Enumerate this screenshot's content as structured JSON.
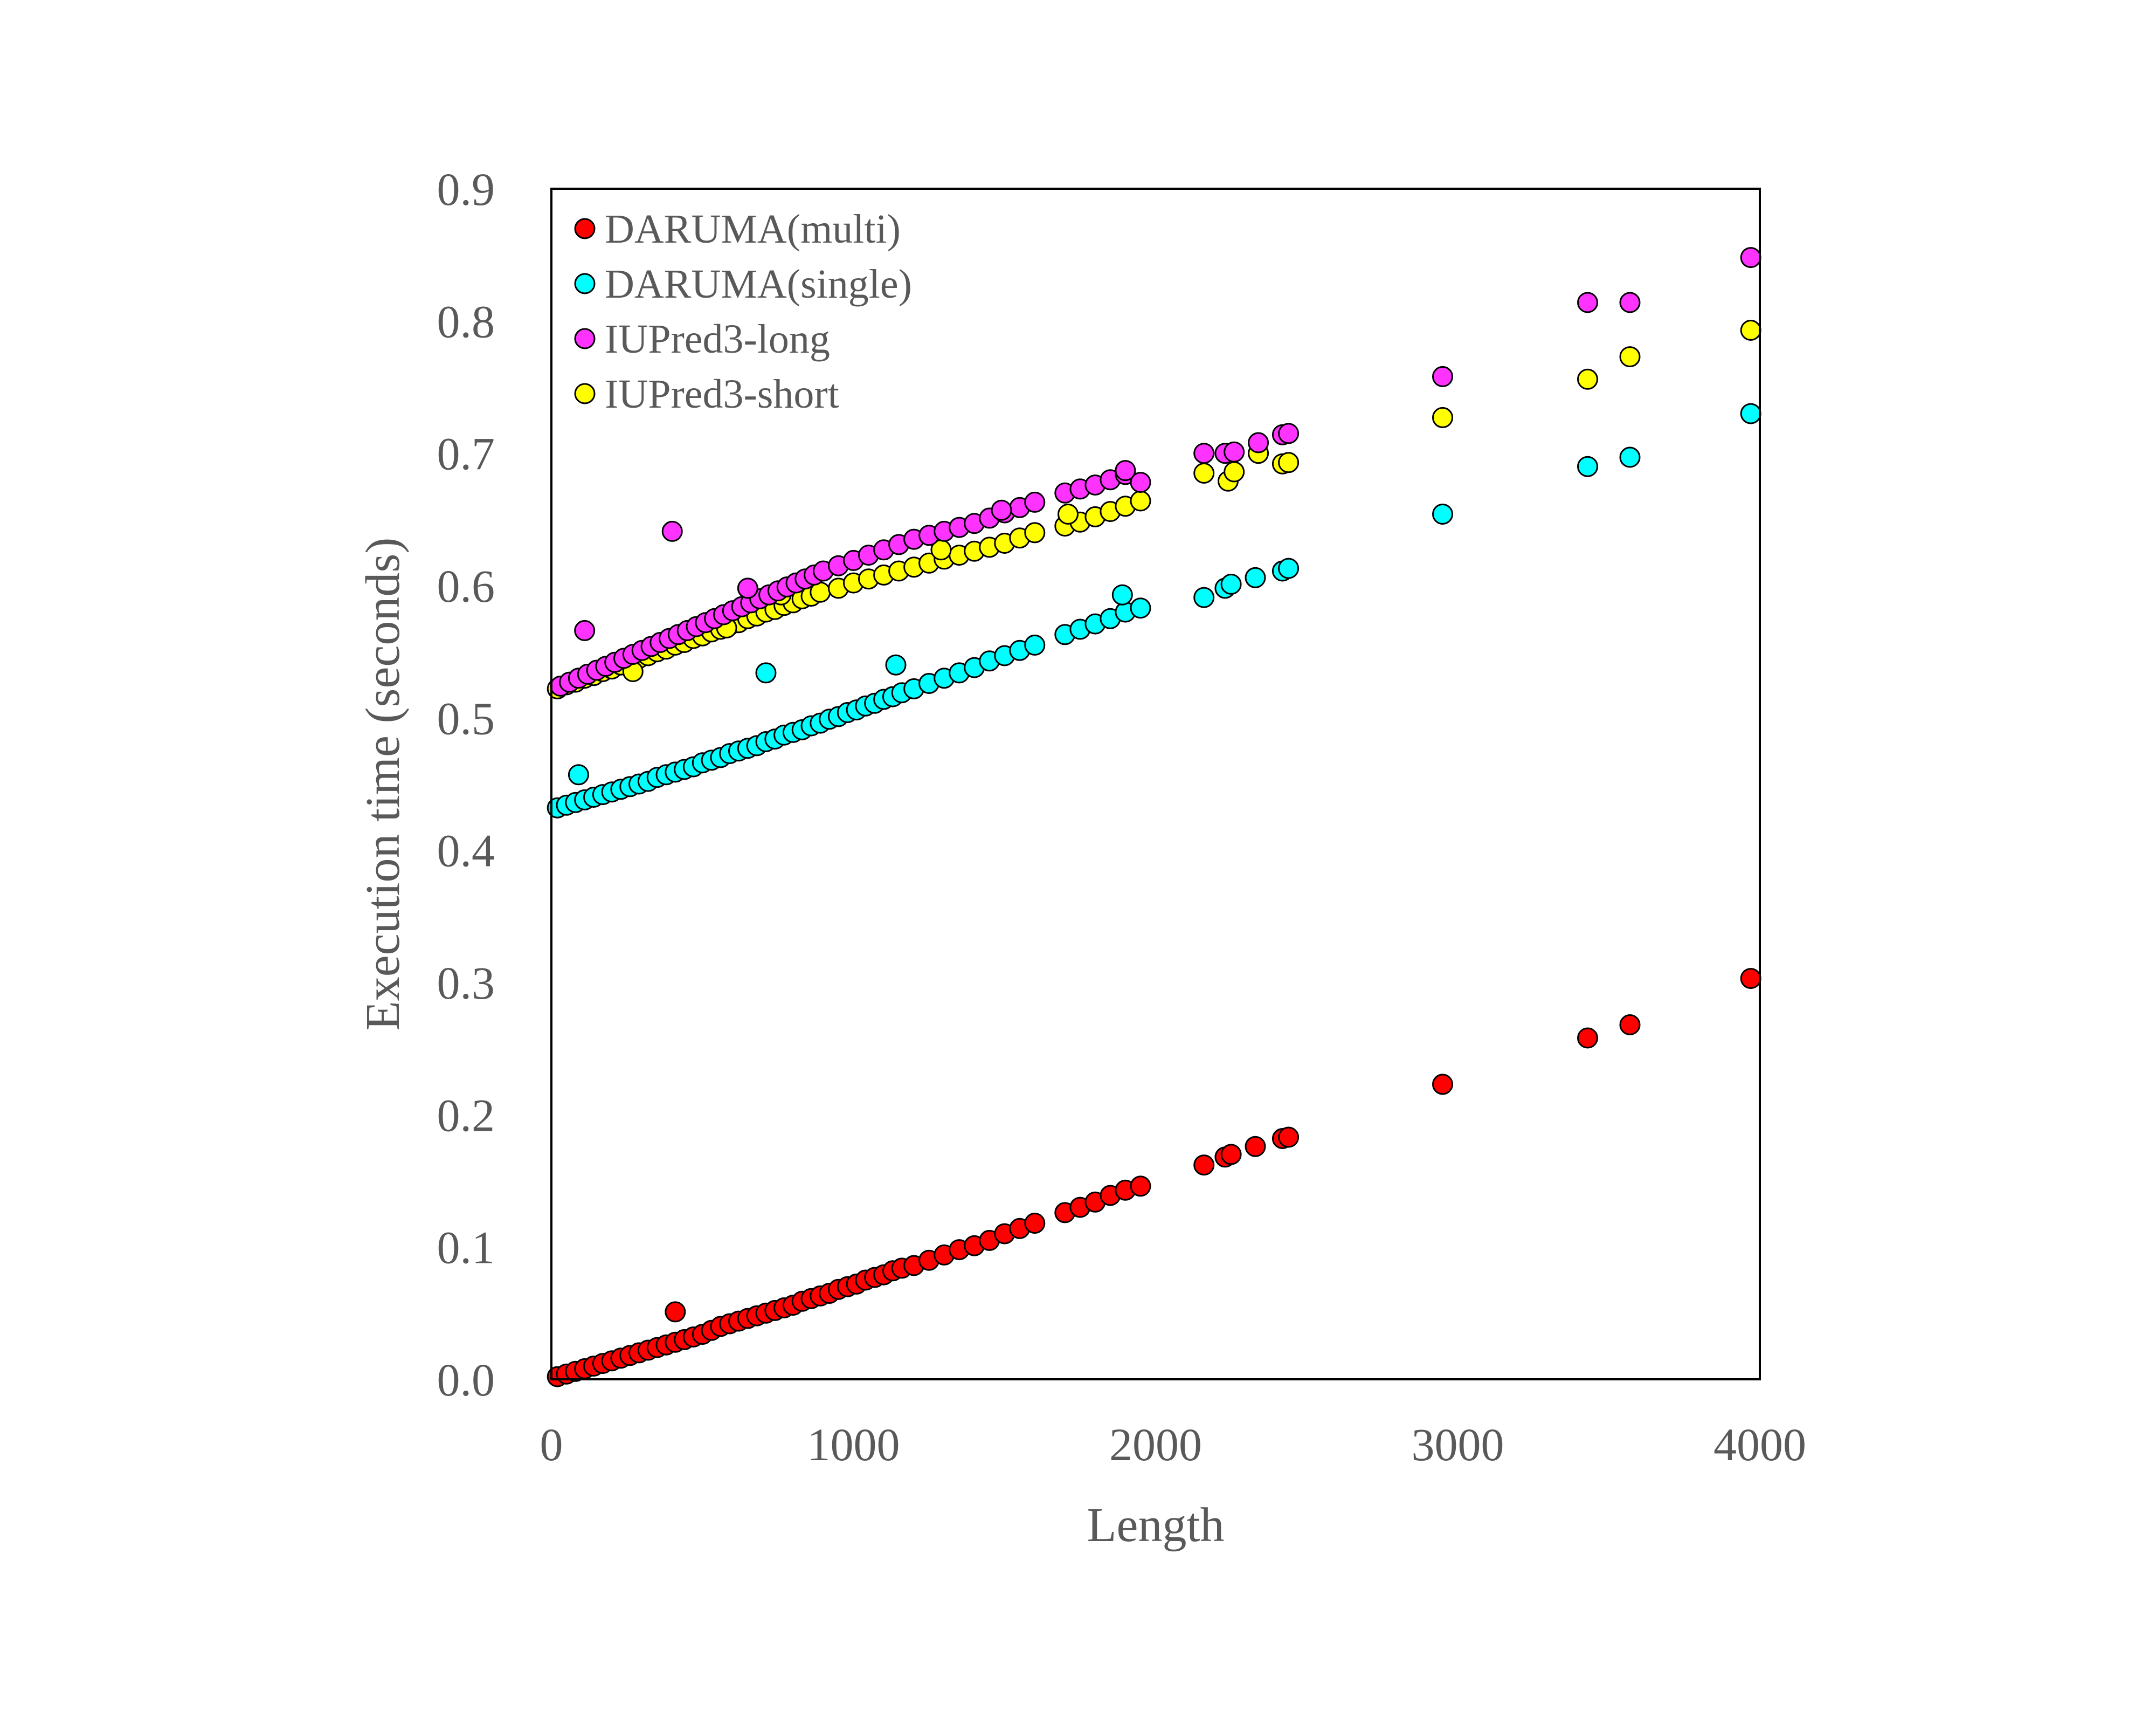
{
  "chart_data": {
    "type": "scatter",
    "xlabel": "Length",
    "ylabel": "Execution time (seconds)",
    "xlim": [
      0,
      4000
    ],
    "ylim": [
      0,
      0.9
    ],
    "x_ticks": [
      "0",
      "1000",
      "2000",
      "3000",
      "4000"
    ],
    "y_ticks": [
      "0.0",
      "0.1",
      "0.2",
      "0.3",
      "0.4",
      "0.5",
      "0.6",
      "0.7",
      "0.8",
      "0.9"
    ],
    "grid": false,
    "legend_position": "top-left",
    "series": [
      {
        "name": "DARUMA(multi)",
        "color": "#ff0000",
        "points": [
          [
            20,
            0.002
          ],
          [
            50,
            0.004
          ],
          [
            80,
            0.006
          ],
          [
            110,
            0.008
          ],
          [
            140,
            0.01
          ],
          [
            170,
            0.012
          ],
          [
            200,
            0.014
          ],
          [
            230,
            0.016
          ],
          [
            260,
            0.018
          ],
          [
            290,
            0.02
          ],
          [
            320,
            0.022
          ],
          [
            350,
            0.024
          ],
          [
            380,
            0.026
          ],
          [
            410,
            0.028
          ],
          [
            440,
            0.03
          ],
          [
            470,
            0.032
          ],
          [
            500,
            0.034
          ],
          [
            530,
            0.037
          ],
          [
            560,
            0.04
          ],
          [
            590,
            0.042
          ],
          [
            620,
            0.044
          ],
          [
            650,
            0.046
          ],
          [
            680,
            0.048
          ],
          [
            710,
            0.05
          ],
          [
            740,
            0.052
          ],
          [
            770,
            0.054
          ],
          [
            800,
            0.056
          ],
          [
            830,
            0.059
          ],
          [
            860,
            0.061
          ],
          [
            890,
            0.063
          ],
          [
            920,
            0.065
          ],
          [
            950,
            0.068
          ],
          [
            980,
            0.07
          ],
          [
            1010,
            0.072
          ],
          [
            1040,
            0.075
          ],
          [
            1070,
            0.077
          ],
          [
            1100,
            0.079
          ],
          [
            1130,
            0.082
          ],
          [
            1160,
            0.084
          ],
          [
            1200,
            0.086
          ],
          [
            1250,
            0.09
          ],
          [
            1300,
            0.094
          ],
          [
            1350,
            0.098
          ],
          [
            1400,
            0.101
          ],
          [
            1450,
            0.105
          ],
          [
            1500,
            0.11
          ],
          [
            1550,
            0.114
          ],
          [
            1600,
            0.118
          ],
          [
            1700,
            0.126
          ],
          [
            1750,
            0.13
          ],
          [
            1800,
            0.134
          ],
          [
            1850,
            0.139
          ],
          [
            1900,
            0.143
          ],
          [
            1950,
            0.146
          ],
          [
            2160,
            0.162
          ],
          [
            2230,
            0.168
          ],
          [
            2250,
            0.17
          ],
          [
            2330,
            0.176
          ],
          [
            2420,
            0.182
          ],
          [
            2440,
            0.183
          ],
          [
            2950,
            0.223
          ],
          [
            3430,
            0.258
          ],
          [
            3570,
            0.268
          ],
          [
            3970,
            0.303
          ],
          [
            410,
            0.051
          ]
        ]
      },
      {
        "name": "DARUMA(single)",
        "color": "#00ffff",
        "points": [
          [
            20,
            0.432
          ],
          [
            50,
            0.434
          ],
          [
            80,
            0.436
          ],
          [
            110,
            0.438
          ],
          [
            140,
            0.44
          ],
          [
            170,
            0.442
          ],
          [
            200,
            0.444
          ],
          [
            230,
            0.446
          ],
          [
            260,
            0.448
          ],
          [
            290,
            0.45
          ],
          [
            320,
            0.452
          ],
          [
            350,
            0.455
          ],
          [
            380,
            0.457
          ],
          [
            410,
            0.459
          ],
          [
            440,
            0.461
          ],
          [
            470,
            0.463
          ],
          [
            500,
            0.466
          ],
          [
            530,
            0.468
          ],
          [
            560,
            0.47
          ],
          [
            590,
            0.473
          ],
          [
            620,
            0.475
          ],
          [
            650,
            0.477
          ],
          [
            680,
            0.479
          ],
          [
            710,
            0.482
          ],
          [
            740,
            0.484
          ],
          [
            770,
            0.487
          ],
          [
            800,
            0.489
          ],
          [
            830,
            0.491
          ],
          [
            860,
            0.494
          ],
          [
            890,
            0.496
          ],
          [
            920,
            0.499
          ],
          [
            950,
            0.501
          ],
          [
            980,
            0.504
          ],
          [
            1010,
            0.506
          ],
          [
            1040,
            0.509
          ],
          [
            1070,
            0.511
          ],
          [
            1100,
            0.514
          ],
          [
            1130,
            0.516
          ],
          [
            1160,
            0.519
          ],
          [
            1200,
            0.522
          ],
          [
            1250,
            0.526
          ],
          [
            1300,
            0.53
          ],
          [
            1350,
            0.534
          ],
          [
            1400,
            0.538
          ],
          [
            1450,
            0.543
          ],
          [
            1500,
            0.547
          ],
          [
            1550,
            0.551
          ],
          [
            1600,
            0.555
          ],
          [
            1700,
            0.563
          ],
          [
            1750,
            0.567
          ],
          [
            1800,
            0.571
          ],
          [
            1850,
            0.575
          ],
          [
            1900,
            0.58
          ],
          [
            1950,
            0.583
          ],
          [
            2160,
            0.591
          ],
          [
            2230,
            0.598
          ],
          [
            2250,
            0.601
          ],
          [
            2330,
            0.606
          ],
          [
            2420,
            0.611
          ],
          [
            2440,
            0.613
          ],
          [
            2950,
            0.654
          ],
          [
            3430,
            0.69
          ],
          [
            3570,
            0.697
          ],
          [
            3970,
            0.73
          ],
          [
            90,
            0.457
          ],
          [
            710,
            0.534
          ],
          [
            1140,
            0.54
          ],
          [
            1890,
            0.593
          ]
        ]
      },
      {
        "name": "IUPred3-long",
        "color": "#ff33ff",
        "points": [
          [
            30,
            0.524
          ],
          [
            60,
            0.527
          ],
          [
            90,
            0.53
          ],
          [
            120,
            0.533
          ],
          [
            150,
            0.536
          ],
          [
            180,
            0.539
          ],
          [
            210,
            0.542
          ],
          [
            240,
            0.545
          ],
          [
            270,
            0.548
          ],
          [
            300,
            0.551
          ],
          [
            330,
            0.554
          ],
          [
            360,
            0.557
          ],
          [
            390,
            0.56
          ],
          [
            420,
            0.563
          ],
          [
            450,
            0.566
          ],
          [
            480,
            0.569
          ],
          [
            510,
            0.572
          ],
          [
            540,
            0.575
          ],
          [
            570,
            0.578
          ],
          [
            600,
            0.581
          ],
          [
            630,
            0.584
          ],
          [
            660,
            0.587
          ],
          [
            690,
            0.59
          ],
          [
            720,
            0.593
          ],
          [
            750,
            0.596
          ],
          [
            780,
            0.599
          ],
          [
            810,
            0.602
          ],
          [
            840,
            0.605
          ],
          [
            870,
            0.608
          ],
          [
            900,
            0.611
          ],
          [
            950,
            0.615
          ],
          [
            1000,
            0.619
          ],
          [
            1050,
            0.623
          ],
          [
            1100,
            0.627
          ],
          [
            1150,
            0.631
          ],
          [
            1200,
            0.635
          ],
          [
            1250,
            0.638
          ],
          [
            1300,
            0.641
          ],
          [
            1350,
            0.644
          ],
          [
            1400,
            0.647
          ],
          [
            1450,
            0.651
          ],
          [
            1500,
            0.655
          ],
          [
            1550,
            0.659
          ],
          [
            1600,
            0.663
          ],
          [
            1700,
            0.67
          ],
          [
            1750,
            0.673
          ],
          [
            1800,
            0.676
          ],
          [
            1850,
            0.68
          ],
          [
            1900,
            0.684
          ],
          [
            1950,
            0.678
          ],
          [
            2160,
            0.7
          ],
          [
            2230,
            0.7
          ],
          [
            2260,
            0.701
          ],
          [
            2340,
            0.708
          ],
          [
            2420,
            0.714
          ],
          [
            2440,
            0.715
          ],
          [
            2950,
            0.758
          ],
          [
            3430,
            0.814
          ],
          [
            3570,
            0.814
          ],
          [
            3970,
            0.848
          ],
          [
            110,
            0.566
          ],
          [
            400,
            0.641
          ],
          [
            650,
            0.598
          ],
          [
            1490,
            0.657
          ],
          [
            1900,
            0.687
          ]
        ]
      },
      {
        "name": "IUPred3-short",
        "color": "#ffff00",
        "points": [
          [
            20,
            0.522
          ],
          [
            50,
            0.525
          ],
          [
            80,
            0.527
          ],
          [
            110,
            0.53
          ],
          [
            140,
            0.532
          ],
          [
            170,
            0.535
          ],
          [
            200,
            0.537
          ],
          [
            230,
            0.54
          ],
          [
            260,
            0.542
          ],
          [
            290,
            0.545
          ],
          [
            320,
            0.547
          ],
          [
            350,
            0.55
          ],
          [
            380,
            0.552
          ],
          [
            410,
            0.555
          ],
          [
            440,
            0.557
          ],
          [
            470,
            0.56
          ],
          [
            500,
            0.562
          ],
          [
            530,
            0.565
          ],
          [
            560,
            0.567
          ],
          [
            590,
            0.57
          ],
          [
            620,
            0.572
          ],
          [
            650,
            0.575
          ],
          [
            680,
            0.577
          ],
          [
            710,
            0.58
          ],
          [
            740,
            0.582
          ],
          [
            770,
            0.585
          ],
          [
            800,
            0.587
          ],
          [
            830,
            0.59
          ],
          [
            860,
            0.592
          ],
          [
            890,
            0.595
          ],
          [
            950,
            0.598
          ],
          [
            1000,
            0.602
          ],
          [
            1050,
            0.605
          ],
          [
            1100,
            0.608
          ],
          [
            1150,
            0.611
          ],
          [
            1200,
            0.614
          ],
          [
            1250,
            0.617
          ],
          [
            1300,
            0.62
          ],
          [
            1350,
            0.623
          ],
          [
            1400,
            0.626
          ],
          [
            1450,
            0.629
          ],
          [
            1500,
            0.632
          ],
          [
            1550,
            0.636
          ],
          [
            1600,
            0.64
          ],
          [
            1700,
            0.645
          ],
          [
            1750,
            0.648
          ],
          [
            1800,
            0.652
          ],
          [
            1850,
            0.656
          ],
          [
            1900,
            0.66
          ],
          [
            1950,
            0.664
          ],
          [
            2160,
            0.685
          ],
          [
            2240,
            0.679
          ],
          [
            2260,
            0.686
          ],
          [
            2340,
            0.7
          ],
          [
            2420,
            0.692
          ],
          [
            2440,
            0.693
          ],
          [
            2950,
            0.727
          ],
          [
            3430,
            0.756
          ],
          [
            3570,
            0.773
          ],
          [
            3970,
            0.793
          ],
          [
            270,
            0.535
          ],
          [
            580,
            0.568
          ],
          [
            760,
            0.593
          ],
          [
            1290,
            0.627
          ],
          [
            1710,
            0.654
          ]
        ]
      }
    ]
  }
}
